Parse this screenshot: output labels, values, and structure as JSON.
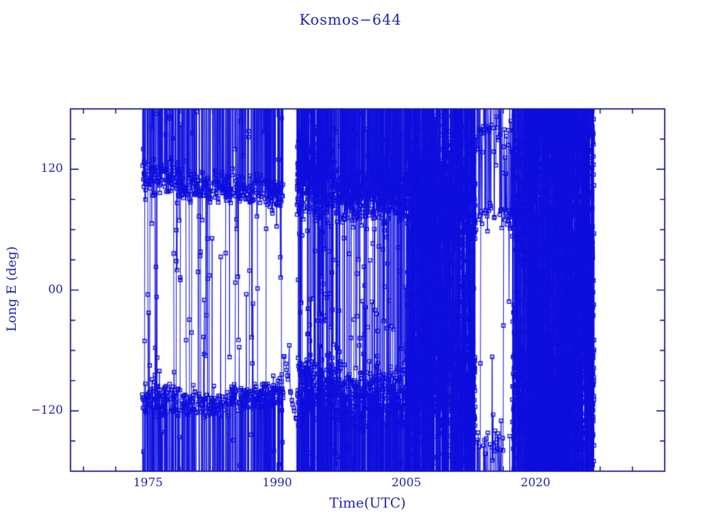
{
  "page": {
    "title": "Kosmos−644"
  },
  "chart_data": {
    "type": "scatter-line",
    "title": "Kosmos−644",
    "xlabel": "Time(UTC)",
    "ylabel": "Long E (deg)",
    "xlim": [
      1966,
      2035
    ],
    "ylim": [
      -180,
      180
    ],
    "x_ticks": [
      {
        "v": 1975,
        "label": "1975"
      },
      {
        "v": 1990,
        "label": "1990"
      },
      {
        "v": 2005,
        "label": "2005"
      },
      {
        "v": 2020,
        "label": "2020"
      }
    ],
    "x_minor_step": 3.75,
    "y_ticks": [
      {
        "v": 120,
        "label": "120"
      },
      {
        "v": 0,
        "label": "00"
      },
      {
        "v": -120,
        "label": "−120"
      }
    ],
    "y_minor_step": 30,
    "grid": false,
    "legend": null,
    "marker": {
      "shape": "open-square",
      "size": 5
    },
    "colors": {
      "background": "#ffffff",
      "data": "#0d0ddd",
      "axis": "#14148a",
      "text": "#2222aa"
    },
    "series_description": "Sub-satellite longitude of Kosmos-644 vs time; points librate/drift around clusters near +75..+135 deg E and -90..-135 deg E with frequent 360-degree wraps drawn as vertical lines; data spans ~1974.3 to ~2026.8.",
    "seed": 1974644,
    "epochs": [
      {
        "t0": 1974.33,
        "t1": 1979.0,
        "n": 230,
        "bands": [
          {
            "c": 113,
            "s": 22,
            "w": 0.42
          },
          {
            "c": -109,
            "s": 20,
            "w": 0.42
          }
        ],
        "uniform": 0.16
      },
      {
        "t0": 1979.0,
        "t1": 1984.0,
        "n": 210,
        "bands": [
          {
            "c": 103,
            "s": 19,
            "w": 0.44
          },
          {
            "c": -113,
            "s": 15,
            "w": 0.44
          }
        ],
        "uniform": 0.12
      },
      {
        "t0": 1984.0,
        "t1": 1989.0,
        "n": 240,
        "bands": [
          {
            "c": 100,
            "s": 17,
            "w": 0.45
          },
          {
            "c": -107,
            "s": 17,
            "w": 0.43
          }
        ],
        "uniform": 0.12
      },
      {
        "t0": 1989.0,
        "t1": 1990.7,
        "n": 110,
        "bands": [
          {
            "c": 96,
            "s": 14,
            "w": 0.48
          },
          {
            "c": -101,
            "s": 22,
            "w": 0.4
          }
        ],
        "uniform": 0.12
      },
      {
        "t0": 1990.7,
        "t1": 1992.3,
        "n": 15,
        "drift": {
          "from": -62,
          "to": -133,
          "s": 5
        },
        "uniform": 0.12
      },
      {
        "t0": 1992.3,
        "t1": 1996.5,
        "n": 520,
        "bands": [
          {
            "c": 112,
            "s": 55,
            "w": 0.5
          },
          {
            "c": -98,
            "s": 36,
            "w": 0.34
          }
        ],
        "uniform": 0.16
      },
      {
        "t0": 1996.5,
        "t1": 2005.0,
        "n": 820,
        "bands": [
          {
            "c": 93,
            "s": 30,
            "w": 0.44
          },
          {
            "c": -104,
            "s": 36,
            "w": 0.4
          }
        ],
        "uniform": 0.16
      },
      {
        "t0": 2005.0,
        "t1": 2013.0,
        "n": 1700,
        "bands": [
          {
            "c": 90,
            "s": 70,
            "w": 0.33
          },
          {
            "c": -95,
            "s": 68,
            "w": 0.33
          }
        ],
        "uniform": 0.34
      },
      {
        "t0": 2013.0,
        "t1": 2017.3,
        "n": 95,
        "bands": [
          {
            "c": 152,
            "s": 22,
            "w": 0.33
          },
          {
            "c": 74,
            "s": 16,
            "w": 0.3
          },
          {
            "c": -150,
            "s": 18,
            "w": 0.22
          }
        ],
        "uniform": 0.15
      },
      {
        "t0": 2017.3,
        "t1": 2019.2,
        "n": 330,
        "bands": [
          {
            "c": 95,
            "s": 75,
            "w": 0.4
          },
          {
            "c": -100,
            "s": 65,
            "w": 0.3
          }
        ],
        "uniform": 0.3
      },
      {
        "t0": 2019.2,
        "t1": 2026.8,
        "n": 1900,
        "bands": [],
        "uniform": 1.0
      }
    ]
  }
}
